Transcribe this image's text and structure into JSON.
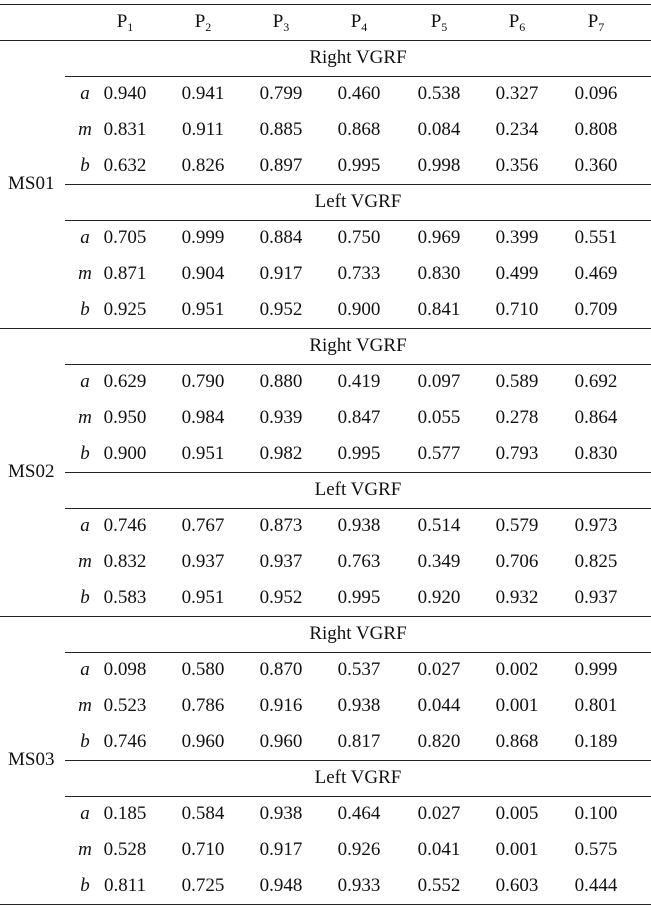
{
  "header": {
    "columns": [
      {
        "base": "P",
        "sub": "1"
      },
      {
        "base": "P",
        "sub": "2"
      },
      {
        "base": "P",
        "sub": "3"
      },
      {
        "base": "P",
        "sub": "4"
      },
      {
        "base": "P",
        "sub": "5"
      },
      {
        "base": "P",
        "sub": "6"
      },
      {
        "base": "P",
        "sub": "7"
      }
    ]
  },
  "subjects": [
    {
      "name": "MS01",
      "sections": [
        {
          "title": "Right VGRF",
          "rows": [
            {
              "param": "a",
              "values": [
                "0.940",
                "0.941",
                "0.799",
                "0.460",
                "0.538",
                "0.327",
                "0.096"
              ]
            },
            {
              "param": "m",
              "values": [
                "0.831",
                "0.911",
                "0.885",
                "0.868",
                "0.084",
                "0.234",
                "0.808"
              ]
            },
            {
              "param": "b",
              "values": [
                "0.632",
                "0.826",
                "0.897",
                "0.995",
                "0.998",
                "0.356",
                "0.360"
              ]
            }
          ]
        },
        {
          "title": "Left VGRF",
          "rows": [
            {
              "param": "a",
              "values": [
                "0.705",
                "0.999",
                "0.884",
                "0.750",
                "0.969",
                "0.399",
                "0.551"
              ]
            },
            {
              "param": "m",
              "values": [
                "0.871",
                "0.904",
                "0.917",
                "0.733",
                "0.830",
                "0.499",
                "0.469"
              ]
            },
            {
              "param": "b",
              "values": [
                "0.925",
                "0.951",
                "0.952",
                "0.900",
                "0.841",
                "0.710",
                "0.709"
              ]
            }
          ]
        }
      ]
    },
    {
      "name": "MS02",
      "sections": [
        {
          "title": "Right VGRF",
          "rows": [
            {
              "param": "a",
              "values": [
                "0.629",
                "0.790",
                "0.880",
                "0.419",
                "0.097",
                "0.589",
                "0.692"
              ]
            },
            {
              "param": "m",
              "values": [
                "0.950",
                "0.984",
                "0.939",
                "0.847",
                "0.055",
                "0.278",
                "0.864"
              ]
            },
            {
              "param": "b",
              "values": [
                "0.900",
                "0.951",
                "0.982",
                "0.995",
                "0.577",
                "0.793",
                "0.830"
              ]
            }
          ]
        },
        {
          "title": "Left VGRF",
          "rows": [
            {
              "param": "a",
              "values": [
                "0.746",
                "0.767",
                "0.873",
                "0.938",
                "0.514",
                "0.579",
                "0.973"
              ]
            },
            {
              "param": "m",
              "values": [
                "0.832",
                "0.937",
                "0.937",
                "0.763",
                "0.349",
                "0.706",
                "0.825"
              ]
            },
            {
              "param": "b",
              "values": [
                "0.583",
                "0.951",
                "0.952",
                "0.995",
                "0.920",
                "0.932",
                "0.937"
              ]
            }
          ]
        }
      ]
    },
    {
      "name": "MS03",
      "sections": [
        {
          "title": "Right VGRF",
          "rows": [
            {
              "param": "a",
              "values": [
                "0.098",
                "0.580",
                "0.870",
                "0.537",
                "0.027",
                "0.002",
                "0.999"
              ]
            },
            {
              "param": "m",
              "values": [
                "0.523",
                "0.786",
                "0.916",
                "0.938",
                "0.044",
                "0.001",
                "0.801"
              ]
            },
            {
              "param": "b",
              "values": [
                "0.746",
                "0.960",
                "0.960",
                "0.817",
                "0.820",
                "0.868",
                "0.189"
              ]
            }
          ]
        },
        {
          "title": "Left VGRF",
          "rows": [
            {
              "param": "a",
              "values": [
                "0.185",
                "0.584",
                "0.938",
                "0.464",
                "0.027",
                "0.005",
                "0.100"
              ]
            },
            {
              "param": "m",
              "values": [
                "0.528",
                "0.710",
                "0.917",
                "0.926",
                "0.041",
                "0.001",
                "0.575"
              ]
            },
            {
              "param": "b",
              "values": [
                "0.811",
                "0.725",
                "0.948",
                "0.933",
                "0.552",
                "0.603",
                "0.444"
              ]
            }
          ]
        }
      ]
    }
  ]
}
